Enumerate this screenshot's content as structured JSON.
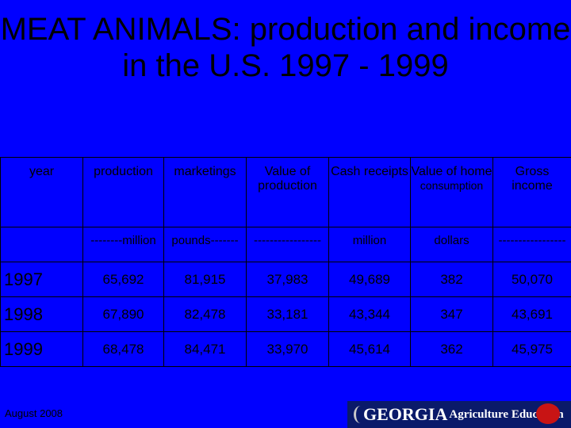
{
  "title": "MEAT ANIMALS:  production and income in the U.S. 1997 - 1999",
  "columns": {
    "year": "year",
    "production": "production",
    "marketings": "marketings",
    "value_of_production": "Value of production",
    "cash_receipts": "Cash receipts",
    "value_home": "Value of home",
    "value_home_sub": "consumption",
    "gross_income": "Gross income"
  },
  "units": {
    "year": "",
    "production": "--------million",
    "marketings": "pounds-------",
    "value_of_production": "-----------------",
    "cash_receipts": "million",
    "value_home": "dollars",
    "gross_income": "-----------------"
  },
  "rows": [
    {
      "year": "1997",
      "production": "65,692",
      "marketings": "81,915",
      "value_of_production": "37,983",
      "cash_receipts": "49,689",
      "value_home": "382",
      "gross_income": "50,070"
    },
    {
      "year": "1998",
      "production": "67,890",
      "marketings": "82,478",
      "value_of_production": "33,181",
      "cash_receipts": "43,344",
      "value_home": "347",
      "gross_income": "43,691"
    },
    {
      "year": "1999",
      "production": "68,478",
      "marketings": "84,471",
      "value_of_production": "33,970",
      "cash_receipts": "45,614",
      "value_home": "362",
      "gross_income": "45,975"
    }
  ],
  "footer": "August 2008",
  "logo": {
    "georgia": "GEORGIA",
    "ag_ed": "Agriculture Education"
  },
  "colors": {
    "background": "#0000ff",
    "logo_bg": "#0a1a6a"
  }
}
